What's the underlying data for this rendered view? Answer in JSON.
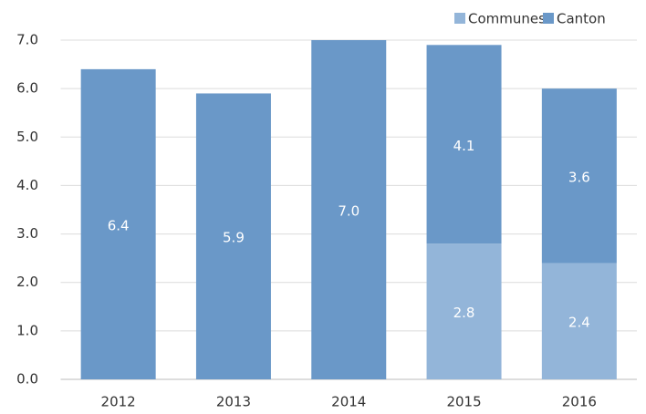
{
  "chart_data": {
    "type": "stacked_bar",
    "categories": [
      "2012",
      "2013",
      "2014",
      "2015",
      "2016"
    ],
    "series": [
      {
        "name": "Communes",
        "color": "#93b5d9",
        "values": [
          null,
          null,
          null,
          2.8,
          2.4
        ],
        "value_labels": [
          null,
          null,
          null,
          "2.8",
          "2.4"
        ]
      },
      {
        "name": "Canton",
        "color": "#6a98c8",
        "values": [
          6.4,
          5.9,
          7.0,
          4.1,
          3.6
        ],
        "value_labels": [
          "6.4",
          "5.9",
          "7.0",
          "4.1",
          "3.6"
        ]
      }
    ],
    "ylim": [
      0,
      7
    ],
    "yticks": [
      {
        "value": 0,
        "label": "0.0"
      },
      {
        "value": 1,
        "label": "1.0"
      },
      {
        "value": 2,
        "label": "2.0"
      },
      {
        "value": 3,
        "label": "3.0"
      },
      {
        "value": 4,
        "label": "4.0"
      },
      {
        "value": 5,
        "label": "5.0"
      },
      {
        "value": 6,
        "label": "6.0"
      },
      {
        "value": 7,
        "label": "7.0"
      }
    ],
    "grid": true,
    "legend": "top-right"
  }
}
